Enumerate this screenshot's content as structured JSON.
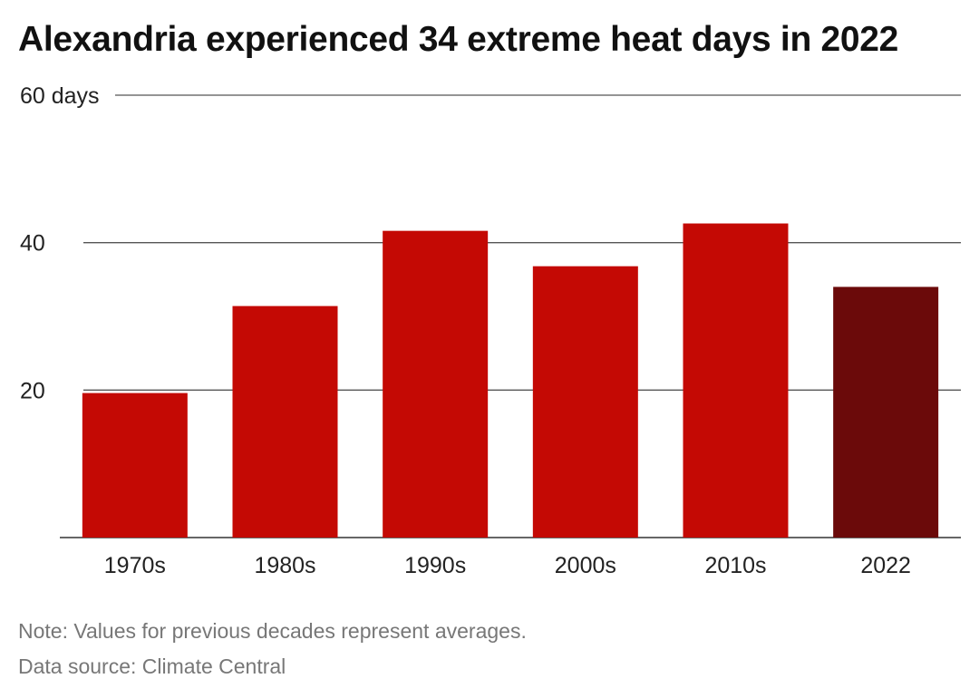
{
  "title": "Alexandria experienced 34 extreme heat days in 2022",
  "notes": {
    "note": "Note: Values for previous decades represent averages.",
    "source": "Data source: Climate Central"
  },
  "colors": {
    "bar": "#c40904",
    "highlight": "#6b0a0a",
    "grid": "#555555",
    "text": "#222222"
  },
  "chart_data": {
    "type": "bar",
    "categories": [
      "1970s",
      "1980s",
      "1990s",
      "2000s",
      "2010s",
      "2022"
    ],
    "values": [
      19.6,
      31.4,
      41.6,
      36.8,
      42.6,
      34
    ],
    "highlight_index": 5,
    "yticks": [
      20,
      40,
      60
    ],
    "ytick_labels": [
      "20",
      "40",
      "60 days"
    ],
    "ylim": [
      0,
      60
    ],
    "grid": true,
    "xlabel": "",
    "ylabel": ""
  }
}
